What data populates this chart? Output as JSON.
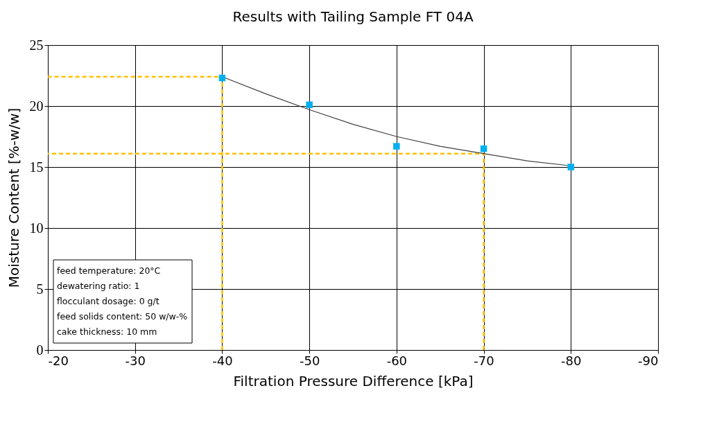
{
  "chart_data": {
    "type": "scatter",
    "title": "Results with Tailing Sample FT 04A",
    "xlabel": "Filtration Pressure Difference [kPa]",
    "ylabel": "Moisture Content [%-w/w]",
    "xlim": [
      -20,
      -90
    ],
    "xticks": [
      -20,
      -30,
      -40,
      -50,
      -60,
      -70,
      -80,
      -90
    ],
    "ylim": [
      0,
      25
    ],
    "yticks": [
      0,
      5,
      10,
      15,
      20,
      25
    ],
    "grid": true,
    "series": [
      {
        "type": "line",
        "color": "#ffc000",
        "line_style": "dashed",
        "marker": "none",
        "x": [
          -40,
          -40,
          -20
        ],
        "values": [
          0,
          22.4,
          22.4
        ]
      },
      {
        "type": "line",
        "color": "#ffc000",
        "line_style": "dashed",
        "marker": "none",
        "x": [
          -70,
          -70,
          -20
        ],
        "values": [
          0,
          16.1,
          16.1
        ]
      },
      {
        "type": "line",
        "color": "#404040",
        "line_style": "solid",
        "marker": "none",
        "x": [
          -40,
          -45,
          -50,
          -55,
          -60,
          -65,
          -70,
          -75,
          -80
        ],
        "values": [
          22.4,
          21.0,
          19.7,
          18.5,
          17.5,
          16.7,
          16.1,
          15.5,
          15.1
        ]
      },
      {
        "color": "#00b0f0",
        "marker": "square",
        "x": [
          -40,
          -50,
          -60,
          -70,
          -80
        ],
        "values": [
          22.3,
          20.1,
          16.7,
          16.5,
          15.0
        ]
      }
    ],
    "annotations": [
      "feed temperature: 20°C",
      "dewatering ratio: 1",
      "flocculant dosage: 0 g/t",
      "feed solids content: 50 w/w-%",
      "cake thickness: 10 mm"
    ]
  }
}
